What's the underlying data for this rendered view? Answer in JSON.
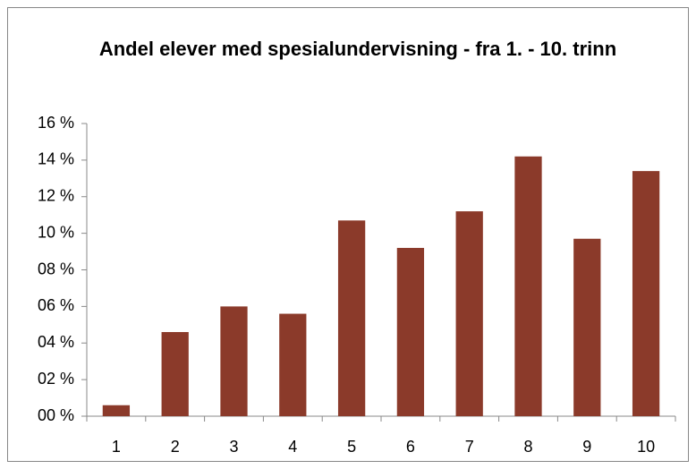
{
  "chart_data": {
    "type": "bar",
    "title": "Andel elever med spesialundervisning - fra 1. - 10. trinn",
    "categories": [
      "1",
      "2",
      "3",
      "4",
      "5",
      "6",
      "7",
      "8",
      "9",
      "10"
    ],
    "values": [
      0.6,
      4.6,
      6.0,
      5.6,
      10.7,
      9.2,
      11.2,
      14.2,
      9.7,
      13.4
    ],
    "color": "#8b3a2a",
    "ylim": [
      0,
      16
    ],
    "yticks": [
      {
        "value": 0,
        "label": "00 %"
      },
      {
        "value": 2,
        "label": "02 %"
      },
      {
        "value": 4,
        "label": "04 %"
      },
      {
        "value": 6,
        "label": "06 %"
      },
      {
        "value": 8,
        "label": "08 %"
      },
      {
        "value": 10,
        "label": "10 %"
      },
      {
        "value": 12,
        "label": "12 %"
      },
      {
        "value": 14,
        "label": "14 %"
      },
      {
        "value": 16,
        "label": "16 %"
      }
    ],
    "grid": false
  }
}
